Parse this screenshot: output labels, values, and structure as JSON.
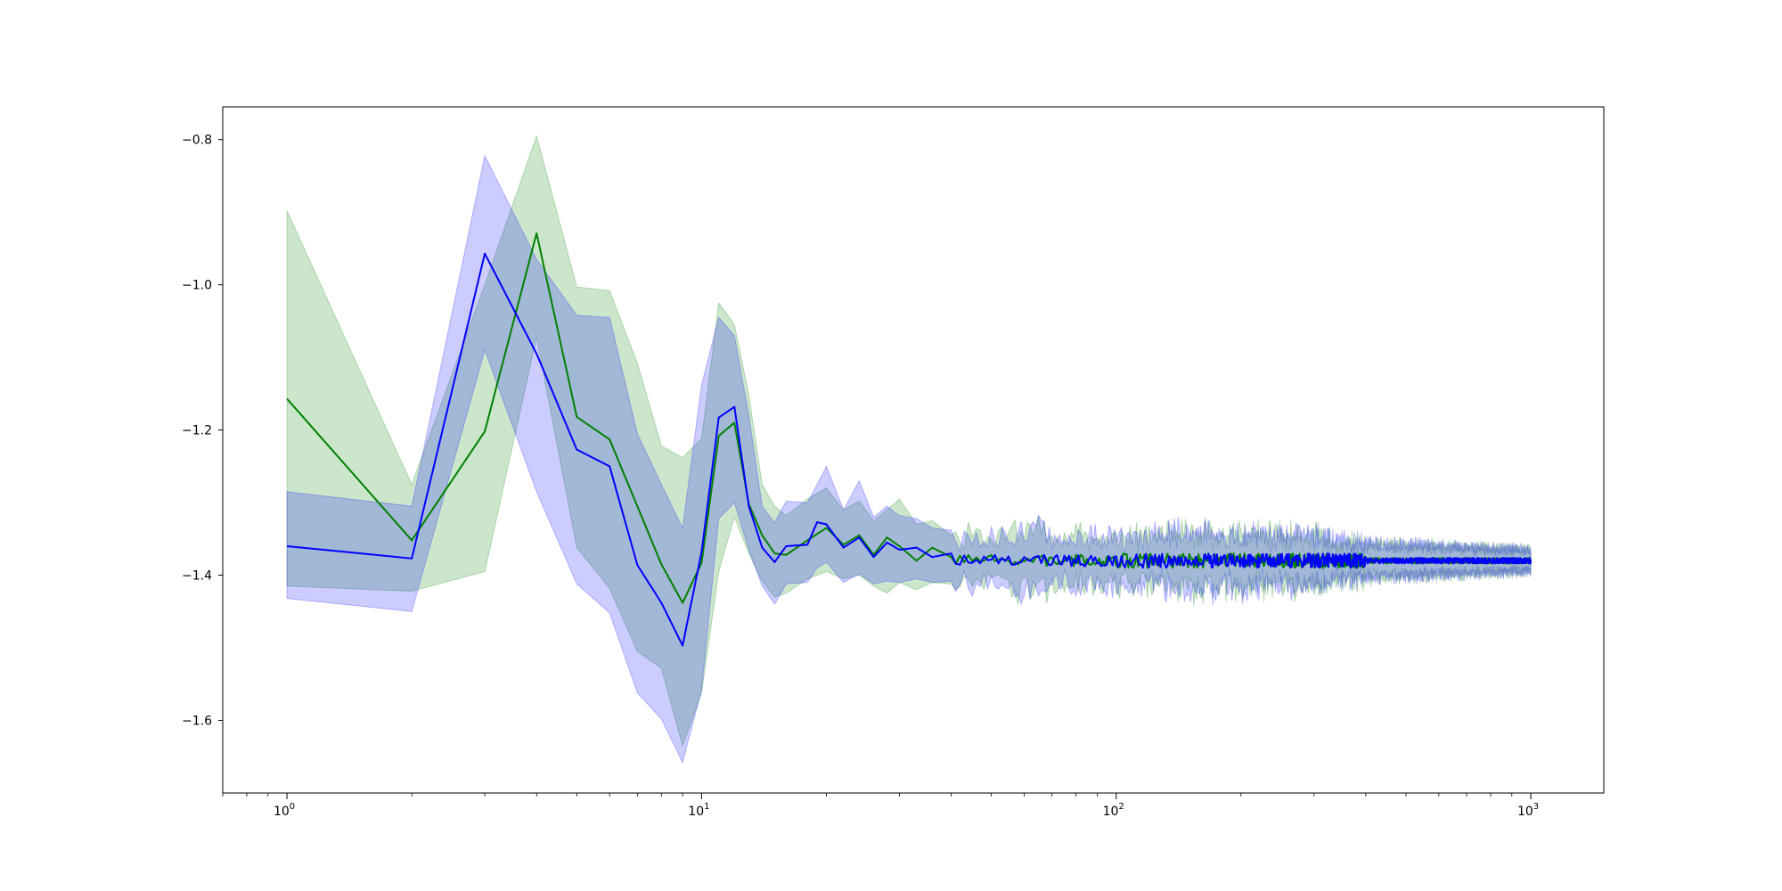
{
  "chart_data": {
    "type": "line",
    "title": "",
    "xlabel": "",
    "ylabel": "",
    "xscale": "log",
    "xlim": [
      0.7,
      1500
    ],
    "ylim": [
      -1.7,
      -0.755
    ],
    "grid": false,
    "x_major_ticks": [
      1,
      10,
      100,
      1000
    ],
    "x_tick_labels": [
      {
        "base": "10",
        "exp": "0"
      },
      {
        "base": "10",
        "exp": "1"
      },
      {
        "base": "10",
        "exp": "2"
      },
      {
        "base": "10",
        "exp": "3"
      }
    ],
    "y_ticks": [
      -0.8,
      -1.0,
      -1.2,
      -1.4,
      -1.6
    ],
    "y_tick_labels": [
      "−0.8",
      "−1.0",
      "−1.2",
      "−1.4",
      "−1.6"
    ],
    "tail_mean": -1.38,
    "series": [
      {
        "color": "#008000",
        "band_color": "#008000",
        "band_opacity": 0.2,
        "noise_seed": 7,
        "points": [
          {
            "x": 1,
            "y": -1.157,
            "lo": -1.415,
            "hi": -0.898
          },
          {
            "x": 2,
            "y": -1.352,
            "lo": -1.422,
            "hi": -1.275
          },
          {
            "x": 3,
            "y": -1.202,
            "lo": -1.395,
            "hi": -1.0
          },
          {
            "x": 4,
            "y": -0.929,
            "lo": -1.072,
            "hi": -0.795
          },
          {
            "x": 5,
            "y": -1.182,
            "lo": -1.362,
            "hi": -1.003
          },
          {
            "x": 6,
            "y": -1.213,
            "lo": -1.418,
            "hi": -1.008
          },
          {
            "x": 7,
            "y": -1.305,
            "lo": -1.505,
            "hi": -1.108
          },
          {
            "x": 8,
            "y": -1.385,
            "lo": -1.528,
            "hi": -1.222
          },
          {
            "x": 9,
            "y": -1.438,
            "lo": -1.635,
            "hi": -1.238
          },
          {
            "x": 10,
            "y": -1.383,
            "lo": -1.562,
            "hi": -1.212
          },
          {
            "x": 11,
            "y": -1.208,
            "lo": -1.395,
            "hi": -1.025
          },
          {
            "x": 12,
            "y": -1.19,
            "lo": -1.32,
            "hi": -1.055
          },
          {
            "x": 13,
            "y": -1.302,
            "lo": -1.37,
            "hi": -1.152
          },
          {
            "x": 14,
            "y": -1.345,
            "lo": -1.408,
            "hi": -1.275
          },
          {
            "x": 15,
            "y": -1.37,
            "lo": -1.43,
            "hi": -1.305
          },
          {
            "x": 16,
            "y": -1.372,
            "lo": -1.425,
            "hi": -1.318
          },
          {
            "x": 18,
            "y": -1.352,
            "lo": -1.405,
            "hi": -1.295
          },
          {
            "x": 20,
            "y": -1.335,
            "lo": -1.395,
            "hi": -1.28
          },
          {
            "x": 22,
            "y": -1.358,
            "lo": -1.405,
            "hi": -1.31
          },
          {
            "x": 24,
            "y": -1.345,
            "lo": -1.4,
            "hi": -1.298
          },
          {
            "x": 26,
            "y": -1.372,
            "lo": -1.415,
            "hi": -1.325
          },
          {
            "x": 28,
            "y": -1.348,
            "lo": -1.425,
            "hi": -1.31
          },
          {
            "x": 30,
            "y": -1.36,
            "lo": -1.41,
            "hi": -1.295
          },
          {
            "x": 33,
            "y": -1.38,
            "lo": -1.42,
            "hi": -1.33
          },
          {
            "x": 36,
            "y": -1.362,
            "lo": -1.41,
            "hi": -1.325
          },
          {
            "x": 40,
            "y": -1.375,
            "lo": -1.412,
            "hi": -1.345
          }
        ]
      },
      {
        "color": "#0000ff",
        "band_color": "#0000ff",
        "band_opacity": 0.2,
        "noise_seed": 13,
        "points": [
          {
            "x": 1,
            "y": -1.36,
            "lo": -1.432,
            "hi": -1.285
          },
          {
            "x": 2,
            "y": -1.377,
            "lo": -1.45,
            "hi": -1.305
          },
          {
            "x": 3,
            "y": -0.957,
            "lo": -1.09,
            "hi": -0.822
          },
          {
            "x": 4,
            "y": -1.095,
            "lo": -1.285,
            "hi": -0.965
          },
          {
            "x": 5,
            "y": -1.227,
            "lo": -1.412,
            "hi": -1.042
          },
          {
            "x": 6,
            "y": -1.25,
            "lo": -1.452,
            "hi": -1.045
          },
          {
            "x": 7,
            "y": -1.386,
            "lo": -1.562,
            "hi": -1.205
          },
          {
            "x": 8,
            "y": -1.438,
            "lo": -1.598,
            "hi": -1.275
          },
          {
            "x": 9,
            "y": -1.497,
            "lo": -1.658,
            "hi": -1.335
          },
          {
            "x": 10,
            "y": -1.368,
            "lo": -1.558,
            "hi": -1.138
          },
          {
            "x": 11,
            "y": -1.183,
            "lo": -1.322,
            "hi": -1.045
          },
          {
            "x": 12,
            "y": -1.168,
            "lo": -1.3,
            "hi": -1.07
          },
          {
            "x": 13,
            "y": -1.305,
            "lo": -1.365,
            "hi": -1.18
          },
          {
            "x": 14,
            "y": -1.362,
            "lo": -1.415,
            "hi": -1.305
          },
          {
            "x": 15,
            "y": -1.382,
            "lo": -1.44,
            "hi": -1.328
          },
          {
            "x": 16,
            "y": -1.36,
            "lo": -1.412,
            "hi": -1.298
          },
          {
            "x": 18,
            "y": -1.358,
            "lo": -1.41,
            "hi": -1.3
          },
          {
            "x": 19,
            "y": -1.327,
            "lo": -1.39,
            "hi": -1.275
          },
          {
            "x": 20,
            "y": -1.33,
            "lo": -1.382,
            "hi": -1.25
          },
          {
            "x": 22,
            "y": -1.362,
            "lo": -1.41,
            "hi": -1.31
          },
          {
            "x": 24,
            "y": -1.348,
            "lo": -1.398,
            "hi": -1.27
          },
          {
            "x": 26,
            "y": -1.375,
            "lo": -1.412,
            "hi": -1.32
          },
          {
            "x": 28,
            "y": -1.355,
            "lo": -1.408,
            "hi": -1.305
          },
          {
            "x": 30,
            "y": -1.365,
            "lo": -1.41,
            "hi": -1.318
          },
          {
            "x": 33,
            "y": -1.362,
            "lo": -1.405,
            "hi": -1.322
          },
          {
            "x": 36,
            "y": -1.375,
            "lo": -1.41,
            "hi": -1.335
          },
          {
            "x": 40,
            "y": -1.37,
            "lo": -1.408,
            "hi": -1.338
          }
        ]
      }
    ]
  }
}
